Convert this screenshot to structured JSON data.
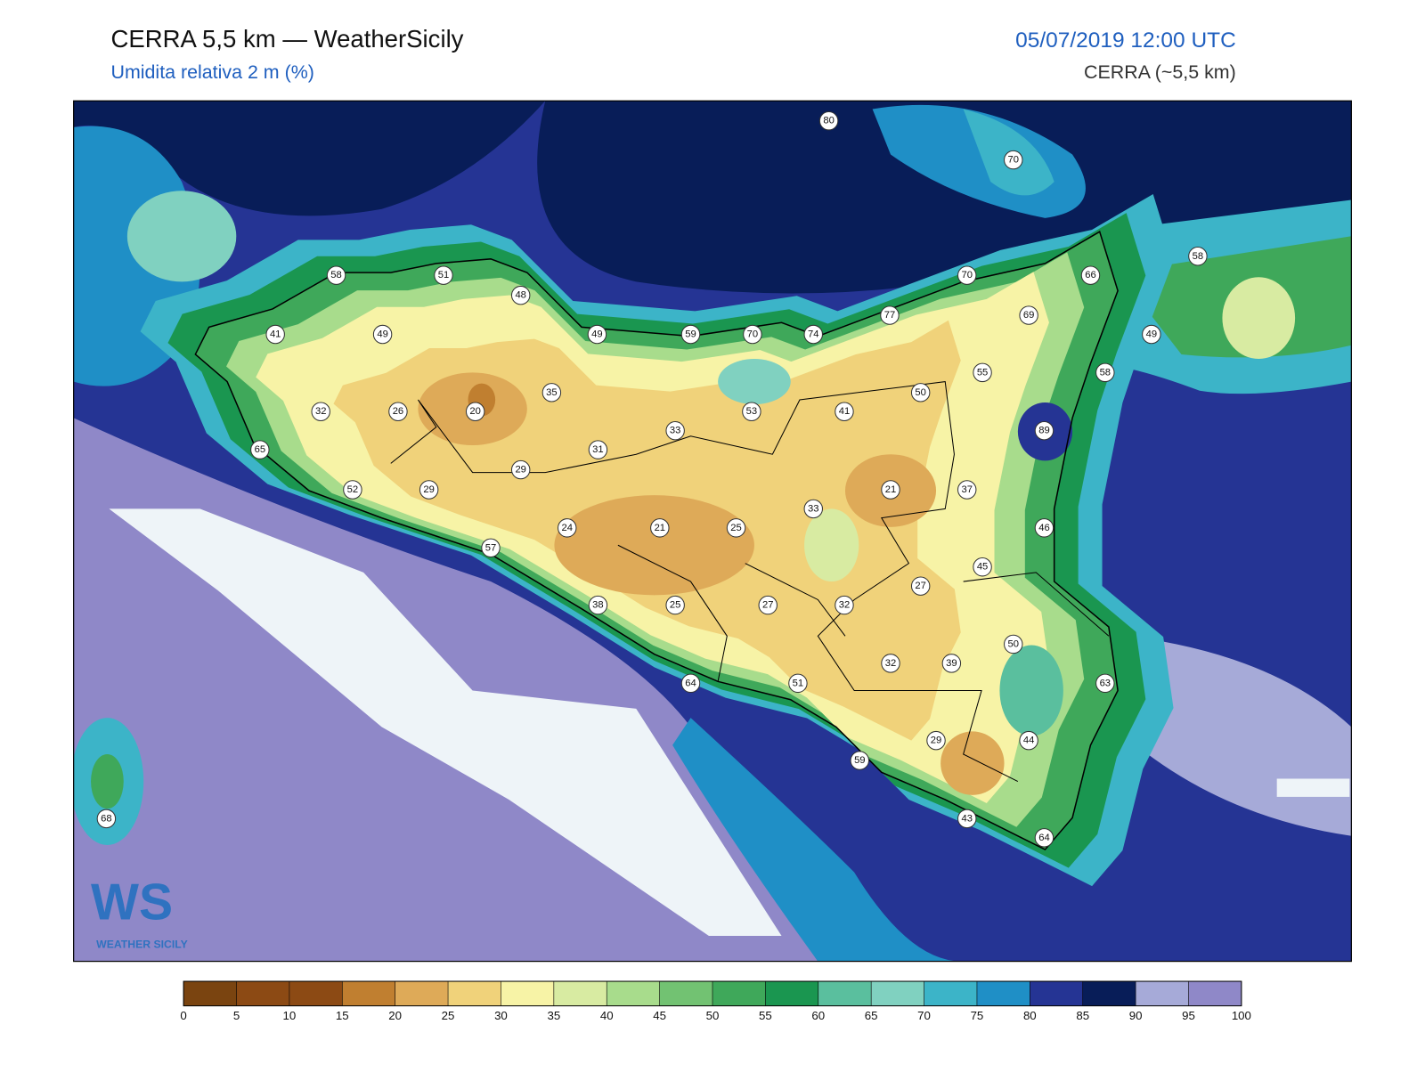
{
  "header": {
    "title": "CERRA 5,5 km — WeatherSicily",
    "subtitle": "Umidita relativa 2 m (%)",
    "date": "05/07/2019 12:00 UTC",
    "model": "CERRA (~5,5 km)"
  },
  "stations": {
    "values": [
      80,
      70,
      58,
      51,
      48,
      70,
      66,
      58,
      41,
      49,
      49,
      59,
      70,
      74,
      77,
      69,
      49,
      55,
      58,
      35,
      50,
      32,
      26,
      20,
      53,
      41,
      89,
      33,
      31,
      65,
      29,
      52,
      29,
      21,
      37,
      33,
      24,
      21,
      25,
      46,
      57,
      45,
      27,
      38,
      25,
      27,
      32,
      50,
      32,
      39,
      64,
      51,
      63,
      29,
      44,
      59,
      43,
      64,
      68
    ]
  },
  "colorbar": {
    "ticks": [
      0,
      5,
      10,
      15,
      20,
      25,
      30,
      35,
      40,
      45,
      50,
      55,
      60,
      65,
      70,
      75,
      80,
      85,
      90,
      95,
      100
    ],
    "colors": [
      "#7a4410",
      "#8c4a14",
      "#8c4a14",
      "#c07f30",
      "#deaa58",
      "#f0d27a",
      "#f7f3a6",
      "#d8eba2",
      "#a8dc8c",
      "#72c272",
      "#3fa85a",
      "#1a9650",
      "#5abf9e",
      "#80d1c0",
      "#3cb4c8",
      "#1f8fc6",
      "#253494",
      "#081d58",
      "#a6aad8",
      "#8f88c8"
    ]
  },
  "logo": {
    "mark": "WS",
    "name": "WEATHER SICILY"
  }
}
